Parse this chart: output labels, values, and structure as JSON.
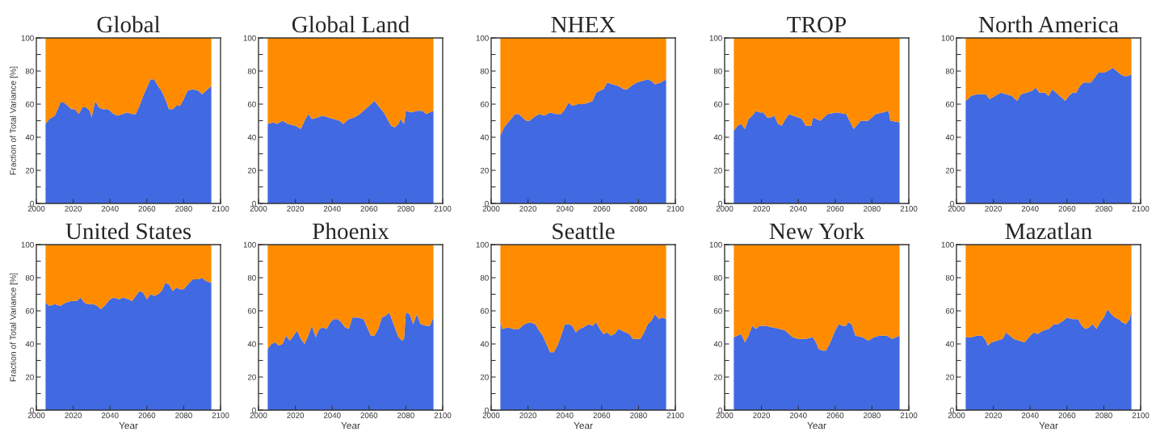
{
  "chart_data": [
    {
      "type": "area",
      "title": "Global",
      "ylabel": "Fraction of Total Variance [%]",
      "stacked": true,
      "xlim": [
        2000,
        2100
      ],
      "xticks": [
        2000,
        2020,
        2040,
        2060,
        2080,
        2100
      ],
      "ylim": [
        0,
        100
      ],
      "yticks": [
        0,
        {
          "value": 10,
          "label": null
        },
        20,
        {
          "value": 30,
          "label": null
        },
        40,
        {
          "value": 50,
          "label": null
        },
        60,
        {
          "value": 70,
          "label": null
        },
        80,
        {
          "value": 90,
          "label": null
        },
        100
      ],
      "x": [
        2005,
        2007,
        2010,
        2012,
        2013,
        2015,
        2017,
        2019,
        2021,
        2023,
        2025,
        2027,
        2029,
        2030,
        2032,
        2034,
        2036,
        2039,
        2042,
        2044,
        2047,
        2049,
        2052,
        2054,
        2056,
        2058,
        2060,
        2062,
        2064,
        2066,
        2068,
        2070,
        2072,
        2074,
        2076,
        2078,
        2080,
        2082,
        2085,
        2088,
        2090,
        2093,
        2095
      ],
      "series": [
        {
          "color": "#4169e1",
          "values": [
            48,
            51,
            53,
            58,
            61,
            61,
            59,
            57,
            57,
            54,
            58,
            58,
            56,
            52,
            62,
            58,
            57,
            57,
            54,
            53,
            54,
            55,
            54,
            54,
            59,
            65,
            70,
            75,
            75,
            71,
            68,
            63,
            57,
            57,
            59,
            59,
            63,
            68,
            69,
            68,
            66,
            69,
            71
          ]
        },
        {
          "color": "#ff8c00",
          "values": [
            52,
            49,
            47,
            42,
            39,
            39,
            41,
            43,
            43,
            46,
            42,
            42,
            44,
            48,
            38,
            42,
            43,
            43,
            46,
            47,
            46,
            45,
            46,
            46,
            41,
            35,
            30,
            25,
            25,
            29,
            32,
            37,
            43,
            43,
            41,
            41,
            37,
            32,
            31,
            32,
            34,
            31,
            29
          ]
        }
      ]
    },
    {
      "type": "area",
      "title": "Global Land",
      "stacked": true,
      "xlim": [
        2000,
        2100
      ],
      "xticks": [
        2000,
        2020,
        2040,
        2060,
        2080,
        2100
      ],
      "ylim": [
        0,
        100
      ],
      "yticks": [
        0,
        {
          "value": 10,
          "label": null
        },
        20,
        {
          "value": 30,
          "label": null
        },
        40,
        {
          "value": 50,
          "label": null
        },
        60,
        {
          "value": 70,
          "label": null
        },
        80,
        {
          "value": 90,
          "label": null
        },
        100
      ],
      "x": [
        2005,
        2008,
        2010,
        2013,
        2016,
        2020,
        2023,
        2025,
        2027,
        2029,
        2032,
        2035,
        2038,
        2041,
        2044,
        2046,
        2049,
        2052,
        2055,
        2058,
        2061,
        2063,
        2065,
        2068,
        2070,
        2072,
        2074,
        2076,
        2077,
        2079,
        2080,
        2083,
        2086,
        2089,
        2091,
        2093,
        2095
      ],
      "series": [
        {
          "color": "#4169e1",
          "values": [
            48,
            49,
            48,
            50,
            48,
            47,
            45,
            50,
            54,
            51,
            52,
            53,
            52,
            51,
            50,
            48,
            51,
            52,
            54,
            57,
            60,
            62,
            59,
            55,
            51,
            47,
            46,
            48,
            51,
            48,
            56,
            55,
            56,
            56,
            54,
            55,
            56
          ]
        },
        {
          "color": "#ff8c00",
          "values": [
            52,
            51,
            52,
            50,
            52,
            53,
            55,
            50,
            46,
            49,
            48,
            47,
            48,
            49,
            50,
            52,
            49,
            48,
            46,
            43,
            40,
            38,
            41,
            45,
            49,
            53,
            54,
            52,
            49,
            52,
            44,
            45,
            44,
            44,
            46,
            45,
            44
          ]
        }
      ]
    },
    {
      "type": "area",
      "title": "NHEX",
      "stacked": true,
      "xlim": [
        2000,
        2100
      ],
      "xticks": [
        2000,
        2020,
        2040,
        2060,
        2080,
        2100
      ],
      "ylim": [
        0,
        100
      ],
      "yticks": [
        0,
        {
          "value": 10,
          "label": null
        },
        20,
        {
          "value": 30,
          "label": null
        },
        40,
        {
          "value": 50,
          "label": null
        },
        60,
        {
          "value": 70,
          "label": null
        },
        80,
        {
          "value": 90,
          "label": null
        },
        100
      ],
      "x": [
        2005,
        2007,
        2010,
        2013,
        2015,
        2017,
        2019,
        2021,
        2023,
        2026,
        2029,
        2032,
        2035,
        2038,
        2040,
        2042,
        2044,
        2047,
        2050,
        2053,
        2055,
        2057,
        2059,
        2061,
        2063,
        2066,
        2069,
        2072,
        2074,
        2076,
        2079,
        2082,
        2085,
        2087,
        2089,
        2092,
        2095
      ],
      "series": [
        {
          "color": "#4169e1",
          "values": [
            41,
            46,
            50,
            54,
            54,
            52,
            50,
            50,
            52,
            54,
            53,
            55,
            54,
            54,
            57,
            61,
            59,
            60,
            60,
            61,
            62,
            67,
            68,
            69,
            73,
            72,
            71,
            69,
            69,
            71,
            73,
            74,
            75,
            74,
            72,
            73,
            75
          ]
        },
        {
          "color": "#ff8c00",
          "values": [
            59,
            54,
            50,
            46,
            46,
            48,
            50,
            50,
            48,
            46,
            47,
            45,
            46,
            46,
            43,
            39,
            41,
            40,
            40,
            39,
            38,
            33,
            32,
            31,
            27,
            28,
            29,
            31,
            31,
            29,
            27,
            26,
            25,
            26,
            28,
            27,
            25
          ]
        }
      ]
    },
    {
      "type": "area",
      "title": "TROP",
      "stacked": true,
      "xlim": [
        2000,
        2100
      ],
      "xticks": [
        2000,
        2020,
        2040,
        2060,
        2080,
        2100
      ],
      "ylim": [
        0,
        100
      ],
      "yticks": [
        0,
        {
          "value": 10,
          "label": null
        },
        20,
        {
          "value": 30,
          "label": null
        },
        40,
        {
          "value": 50,
          "label": null
        },
        60,
        {
          "value": 70,
          "label": null
        },
        80,
        {
          "value": 90,
          "label": null
        },
        100
      ],
      "x": [
        2005,
        2007,
        2009,
        2011,
        2013,
        2015,
        2017,
        2019,
        2021,
        2023,
        2025,
        2027,
        2029,
        2031,
        2033,
        2035,
        2037,
        2040,
        2042,
        2044,
        2047,
        2048,
        2052,
        2056,
        2061,
        2066,
        2070,
        2074,
        2078,
        2082,
        2086,
        2089,
        2090,
        2095
      ],
      "series": [
        {
          "color": "#4169e1",
          "values": [
            44,
            47,
            48,
            45,
            51,
            53,
            56,
            55,
            55,
            52,
            52,
            53,
            48,
            47,
            51,
            54,
            53,
            52,
            51,
            47,
            47,
            52,
            50,
            54,
            55,
            54,
            45,
            50,
            50,
            54,
            55,
            56,
            50,
            49
          ]
        },
        {
          "color": "#ff8c00",
          "values": [
            56,
            53,
            52,
            55,
            49,
            47,
            44,
            45,
            45,
            48,
            48,
            47,
            52,
            53,
            49,
            46,
            47,
            48,
            49,
            53,
            53,
            48,
            50,
            46,
            45,
            46,
            55,
            50,
            50,
            46,
            45,
            44,
            50,
            51
          ]
        }
      ]
    },
    {
      "type": "area",
      "title": "North America",
      "stacked": true,
      "xlim": [
        2000,
        2100
      ],
      "xticks": [
        2000,
        2020,
        2040,
        2060,
        2080,
        2100
      ],
      "ylim": [
        0,
        100
      ],
      "yticks": [
        0,
        {
          "value": 10,
          "label": null
        },
        20,
        {
          "value": 30,
          "label": null
        },
        40,
        {
          "value": 50,
          "label": null
        },
        60,
        {
          "value": 70,
          "label": null
        },
        80,
        {
          "value": 90,
          "label": null
        },
        100
      ],
      "x": [
        2005,
        2008,
        2011,
        2014,
        2016,
        2018,
        2021,
        2024,
        2027,
        2030,
        2033,
        2035,
        2038,
        2041,
        2043,
        2045,
        2048,
        2050,
        2052,
        2055,
        2057,
        2059,
        2061,
        2063,
        2065,
        2067,
        2069,
        2071,
        2073,
        2075,
        2077,
        2080,
        2082,
        2085,
        2087,
        2089,
        2091,
        2093,
        2095
      ],
      "series": [
        {
          "color": "#4169e1",
          "values": [
            62,
            65,
            66,
            66,
            66,
            63,
            65,
            67,
            66,
            65,
            62,
            66,
            67,
            68,
            70,
            67,
            67,
            65,
            69,
            66,
            64,
            62,
            65,
            67,
            67,
            71,
            73,
            73,
            73,
            76,
            79,
            79,
            80,
            82,
            80,
            78,
            77,
            77,
            78
          ]
        },
        {
          "color": "#ff8c00",
          "values": [
            38,
            35,
            34,
            34,
            34,
            37,
            35,
            33,
            34,
            35,
            38,
            34,
            33,
            32,
            30,
            33,
            33,
            35,
            31,
            34,
            36,
            38,
            35,
            33,
            33,
            29,
            27,
            27,
            27,
            24,
            21,
            21,
            20,
            18,
            20,
            22,
            23,
            23,
            22
          ]
        }
      ]
    },
    {
      "type": "area",
      "title": "United States",
      "ylabel": "Fraction of Total Variance [%]",
      "xlabel": "Year",
      "stacked": true,
      "xlim": [
        2000,
        2100
      ],
      "xticks": [
        2000,
        2020,
        2040,
        2060,
        2080,
        2100
      ],
      "ylim": [
        0,
        100
      ],
      "yticks": [
        0,
        {
          "value": 10,
          "label": null
        },
        20,
        {
          "value": 30,
          "label": null
        },
        40,
        {
          "value": 50,
          "label": null
        },
        60,
        {
          "value": 70,
          "label": null
        },
        80,
        {
          "value": 90,
          "label": null
        },
        100
      ],
      "x": [
        2005,
        2007,
        2010,
        2013,
        2016,
        2019,
        2022,
        2024,
        2026,
        2028,
        2031,
        2033,
        2035,
        2037,
        2040,
        2042,
        2045,
        2047,
        2050,
        2052,
        2054,
        2056,
        2058,
        2060,
        2062,
        2064,
        2066,
        2068,
        2070,
        2072,
        2074,
        2076,
        2078,
        2080,
        2083,
        2085,
        2088,
        2090,
        2092,
        2095
      ],
      "series": [
        {
          "color": "#4169e1",
          "values": [
            65,
            63,
            64,
            63,
            65,
            66,
            66,
            68,
            65,
            64,
            64,
            63,
            61,
            63,
            67,
            68,
            67,
            68,
            67,
            66,
            69,
            72,
            71,
            67,
            70,
            69,
            70,
            72,
            77,
            76,
            72,
            74,
            73,
            73,
            77,
            79,
            79,
            80,
            78,
            77
          ]
        },
        {
          "color": "#ff8c00",
          "values": [
            35,
            37,
            36,
            37,
            35,
            34,
            34,
            32,
            35,
            36,
            36,
            37,
            39,
            37,
            33,
            32,
            33,
            32,
            33,
            34,
            31,
            28,
            29,
            33,
            30,
            31,
            30,
            28,
            23,
            24,
            28,
            26,
            27,
            27,
            23,
            21,
            21,
            20,
            22,
            23
          ]
        }
      ]
    },
    {
      "type": "area",
      "title": "Phoenix",
      "xlabel": "Year",
      "stacked": true,
      "xlim": [
        2000,
        2100
      ],
      "xticks": [
        2000,
        2020,
        2040,
        2060,
        2080,
        2100
      ],
      "ylim": [
        0,
        100
      ],
      "yticks": [
        0,
        {
          "value": 10,
          "label": null
        },
        20,
        {
          "value": 30,
          "label": null
        },
        40,
        {
          "value": 50,
          "label": null
        },
        60,
        {
          "value": 70,
          "label": null
        },
        80,
        {
          "value": 90,
          "label": null
        },
        100
      ],
      "x": [
        2005,
        2007,
        2009,
        2011,
        2013,
        2015,
        2017,
        2019,
        2021,
        2023,
        2025,
        2027,
        2029,
        2031,
        2033,
        2035,
        2037,
        2039,
        2041,
        2043,
        2045,
        2047,
        2049,
        2051,
        2054,
        2057,
        2059,
        2061,
        2063,
        2065,
        2067,
        2069,
        2071,
        2072,
        2074,
        2076,
        2078,
        2079,
        2080,
        2082,
        2084,
        2086,
        2088,
        2091,
        2093,
        2095
      ],
      "series": [
        {
          "color": "#4169e1",
          "values": [
            37,
            40,
            41,
            39,
            40,
            45,
            42,
            45,
            48,
            43,
            40,
            45,
            51,
            44,
            49,
            50,
            49,
            53,
            55,
            55,
            53,
            50,
            49,
            56,
            56,
            55,
            50,
            45,
            45,
            49,
            56,
            57,
            59,
            56,
            50,
            44,
            42,
            43,
            59,
            58,
            52,
            58,
            52,
            51,
            51,
            56
          ]
        },
        {
          "color": "#ff8c00",
          "values": [
            63,
            60,
            59,
            61,
            60,
            55,
            58,
            55,
            52,
            57,
            60,
            55,
            49,
            56,
            51,
            50,
            51,
            47,
            45,
            45,
            47,
            50,
            51,
            44,
            44,
            45,
            50,
            55,
            55,
            51,
            44,
            43,
            41,
            44,
            50,
            56,
            58,
            57,
            41,
            42,
            48,
            42,
            48,
            49,
            49,
            44
          ]
        }
      ]
    },
    {
      "type": "area",
      "title": "Seattle",
      "xlabel": "Year",
      "stacked": true,
      "xlim": [
        2000,
        2100
      ],
      "xticks": [
        2000,
        2020,
        2040,
        2060,
        2080,
        2100
      ],
      "ylim": [
        0,
        100
      ],
      "yticks": [
        0,
        {
          "value": 10,
          "label": null
        },
        20,
        {
          "value": 30,
          "label": null
        },
        40,
        {
          "value": 50,
          "label": null
        },
        60,
        {
          "value": 70,
          "label": null
        },
        80,
        {
          "value": 90,
          "label": null
        },
        100
      ],
      "x": [
        2005,
        2006,
        2009,
        2012,
        2015,
        2018,
        2021,
        2024,
        2026,
        2028,
        2030,
        2032,
        2034,
        2036,
        2038,
        2040,
        2042,
        2044,
        2046,
        2048,
        2050,
        2053,
        2055,
        2057,
        2059,
        2061,
        2063,
        2065,
        2067,
        2069,
        2071,
        2073,
        2075,
        2077,
        2079,
        2081,
        2083,
        2085,
        2087,
        2089,
        2091,
        2093,
        2095
      ],
      "series": [
        {
          "color": "#4169e1",
          "values": [
            53,
            49,
            50,
            49,
            49,
            52,
            53,
            52,
            48,
            45,
            40,
            35,
            35,
            39,
            45,
            52,
            52,
            51,
            47,
            49,
            50,
            52,
            51,
            53,
            49,
            46,
            47,
            45,
            46,
            49,
            48,
            47,
            46,
            43,
            43,
            43,
            47,
            52,
            54,
            58,
            55,
            56,
            55
          ]
        },
        {
          "color": "#ff8c00",
          "values": [
            47,
            51,
            50,
            51,
            51,
            48,
            47,
            48,
            52,
            55,
            60,
            65,
            65,
            61,
            55,
            48,
            48,
            49,
            53,
            51,
            50,
            48,
            49,
            47,
            51,
            54,
            53,
            55,
            54,
            51,
            52,
            53,
            54,
            57,
            57,
            57,
            53,
            48,
            46,
            42,
            45,
            44,
            45
          ]
        }
      ]
    },
    {
      "type": "area",
      "title": "New York",
      "xlabel": "Year",
      "stacked": true,
      "xlim": [
        2000,
        2100
      ],
      "xticks": [
        2000,
        2020,
        2040,
        2060,
        2080,
        2100
      ],
      "ylim": [
        0,
        100
      ],
      "yticks": [
        0,
        {
          "value": 10,
          "label": null
        },
        20,
        {
          "value": 30,
          "label": null
        },
        40,
        {
          "value": 50,
          "label": null
        },
        60,
        {
          "value": 70,
          "label": null
        },
        80,
        {
          "value": 90,
          "label": null
        },
        100
      ],
      "x": [
        2005,
        2007,
        2009,
        2011,
        2013,
        2015,
        2017,
        2019,
        2022,
        2026,
        2030,
        2033,
        2035,
        2037,
        2040,
        2044,
        2048,
        2050,
        2051,
        2053,
        2055,
        2057,
        2060,
        2062,
        2064,
        2066,
        2067,
        2069,
        2071,
        2075,
        2078,
        2081,
        2084,
        2088,
        2091,
        2095
      ],
      "series": [
        {
          "color": "#4169e1",
          "values": [
            44,
            45,
            46,
            41,
            45,
            51,
            49,
            51,
            51,
            50,
            49,
            48,
            46,
            44,
            43,
            43,
            44,
            40,
            37,
            36,
            36,
            40,
            48,
            52,
            51,
            51,
            53,
            52,
            45,
            44,
            42,
            44,
            45,
            45,
            43,
            45
          ]
        },
        {
          "color": "#ff8c00",
          "values": [
            56,
            55,
            54,
            59,
            55,
            49,
            51,
            49,
            49,
            50,
            51,
            52,
            54,
            56,
            57,
            57,
            56,
            60,
            63,
            64,
            64,
            60,
            52,
            48,
            49,
            49,
            47,
            48,
            55,
            56,
            58,
            56,
            55,
            55,
            57,
            55
          ]
        }
      ]
    },
    {
      "type": "area",
      "title": "Mazatlan",
      "xlabel": "Year",
      "stacked": true,
      "xlim": [
        2000,
        2100
      ],
      "xticks": [
        2000,
        2020,
        2040,
        2060,
        2080,
        2100
      ],
      "ylim": [
        0,
        100
      ],
      "yticks": [
        0,
        {
          "value": 10,
          "label": null
        },
        20,
        {
          "value": 30,
          "label": null
        },
        40,
        {
          "value": 50,
          "label": null
        },
        60,
        {
          "value": 70,
          "label": null
        },
        80,
        {
          "value": 90,
          "label": null
        },
        100
      ],
      "x": [
        2005,
        2008,
        2011,
        2014,
        2016,
        2017,
        2019,
        2022,
        2025,
        2027,
        2029,
        2031,
        2034,
        2037,
        2040,
        2042,
        2044,
        2047,
        2050,
        2053,
        2055,
        2058,
        2060,
        2063,
        2066,
        2068,
        2070,
        2072,
        2074,
        2076,
        2078,
        2080,
        2082,
        2084,
        2086,
        2088,
        2090,
        2092,
        2094,
        2095
      ],
      "series": [
        {
          "color": "#4169e1",
          "values": [
            44,
            44,
            45,
            45,
            42,
            39,
            41,
            42,
            43,
            47,
            45,
            43,
            42,
            41,
            45,
            47,
            46,
            48,
            49,
            52,
            52,
            54,
            56,
            55,
            55,
            51,
            49,
            50,
            52,
            49,
            53,
            56,
            61,
            58,
            56,
            55,
            53,
            52,
            55,
            60
          ]
        },
        {
          "color": "#ff8c00",
          "values": [
            56,
            56,
            55,
            55,
            58,
            61,
            59,
            58,
            57,
            53,
            55,
            57,
            58,
            59,
            55,
            53,
            54,
            52,
            51,
            48,
            48,
            46,
            44,
            45,
            45,
            49,
            51,
            50,
            48,
            51,
            47,
            44,
            39,
            42,
            44,
            45,
            47,
            48,
            45,
            40
          ]
        }
      ]
    }
  ]
}
